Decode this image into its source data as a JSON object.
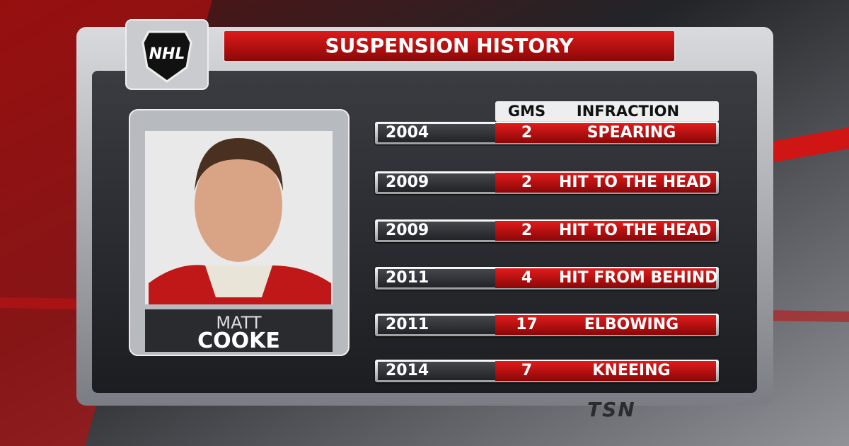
{
  "header": {
    "logo": "NHL",
    "title": "SUSPENSION HISTORY"
  },
  "player": {
    "first_name": "MATT",
    "last_name": "COOKE"
  },
  "table": {
    "columns": [
      "GMS",
      "INFRACTION"
    ],
    "rows": [
      [
        2004,
        2,
        "SPEARING"
      ],
      [
        2009,
        2,
        "HIT TO THE HEAD"
      ],
      [
        2009,
        2,
        "HIT TO THE HEAD"
      ],
      [
        2011,
        4,
        "HIT FROM BEHIND"
      ],
      [
        2011,
        17,
        "ELBOWING"
      ],
      [
        2014,
        7,
        "KNEEING"
      ]
    ]
  },
  "watermark": "TSN"
}
